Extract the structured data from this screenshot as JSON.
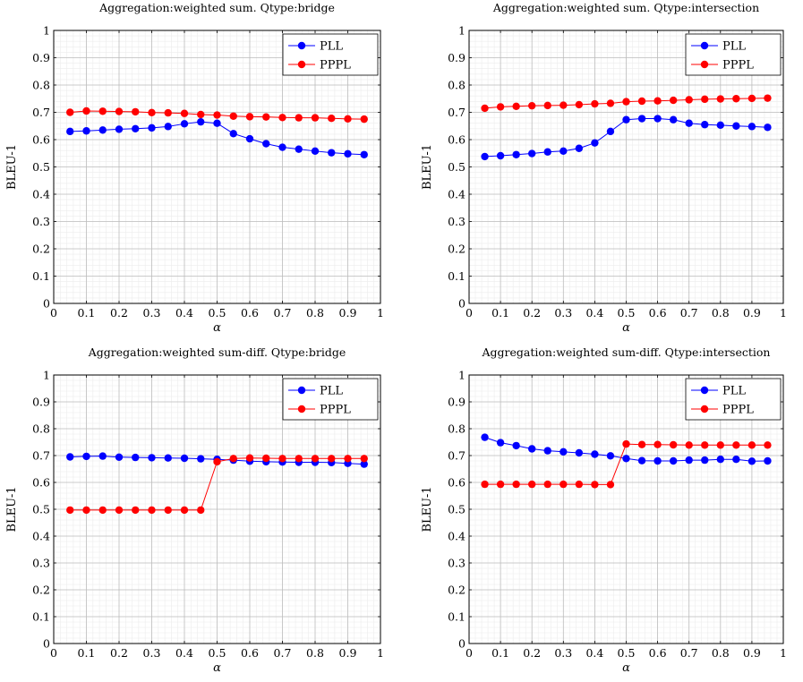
{
  "chart_data": [
    {
      "type": "line",
      "title": "Aggregation:weighted sum. Qtype:bridge",
      "xlabel": "α",
      "ylabel": "BLEU-1",
      "xlim": [
        0,
        1
      ],
      "ylim": [
        0,
        1
      ],
      "xticks": [
        "0",
        "0.1",
        "0.2",
        "0.3",
        "0.4",
        "0.5",
        "0.6",
        "0.7",
        "0.8",
        "0.9",
        "1"
      ],
      "yticks": [
        "0",
        "0.1",
        "0.2",
        "0.3",
        "0.4",
        "0.5",
        "0.6",
        "0.7",
        "0.8",
        "0.9",
        "1"
      ],
      "grid": true,
      "legend_position": "top-right",
      "x": [
        0.05,
        0.1,
        0.15,
        0.2,
        0.25,
        0.3,
        0.35,
        0.4,
        0.45,
        0.5,
        0.55,
        0.6,
        0.65,
        0.7,
        0.75,
        0.8,
        0.85,
        0.9,
        0.95
      ],
      "series": [
        {
          "name": "PLL",
          "color": "#0000ff",
          "values": [
            0.63,
            0.632,
            0.635,
            0.638,
            0.64,
            0.643,
            0.648,
            0.658,
            0.665,
            0.66,
            0.622,
            0.603,
            0.585,
            0.572,
            0.565,
            0.558,
            0.552,
            0.548,
            0.545
          ]
        },
        {
          "name": "PPPL",
          "color": "#ff0000",
          "values": [
            0.7,
            0.705,
            0.704,
            0.703,
            0.702,
            0.699,
            0.698,
            0.696,
            0.692,
            0.69,
            0.686,
            0.684,
            0.683,
            0.681,
            0.68,
            0.68,
            0.678,
            0.676,
            0.675
          ]
        }
      ]
    },
    {
      "type": "line",
      "title": "Aggregation:weighted sum. Qtype:intersection",
      "xlabel": "α",
      "ylabel": "BLEU-1",
      "xlim": [
        0,
        1
      ],
      "ylim": [
        0,
        1
      ],
      "xticks": [
        "0",
        "0.1",
        "0.2",
        "0.3",
        "0.4",
        "0.5",
        "0.6",
        "0.7",
        "0.8",
        "0.9",
        "1"
      ],
      "yticks": [
        "0",
        "0.1",
        "0.2",
        "0.3",
        "0.4",
        "0.5",
        "0.6",
        "0.7",
        "0.8",
        "0.9",
        "1"
      ],
      "grid": true,
      "legend_position": "top-right",
      "x": [
        0.05,
        0.1,
        0.15,
        0.2,
        0.25,
        0.3,
        0.35,
        0.4,
        0.45,
        0.5,
        0.55,
        0.6,
        0.65,
        0.7,
        0.75,
        0.8,
        0.85,
        0.9,
        0.95
      ],
      "series": [
        {
          "name": "PLL",
          "color": "#0000ff",
          "values": [
            0.538,
            0.541,
            0.545,
            0.549,
            0.555,
            0.558,
            0.568,
            0.588,
            0.63,
            0.673,
            0.677,
            0.677,
            0.673,
            0.66,
            0.655,
            0.653,
            0.65,
            0.648,
            0.645
          ]
        },
        {
          "name": "PPPL",
          "color": "#ff0000",
          "values": [
            0.715,
            0.72,
            0.722,
            0.724,
            0.725,
            0.726,
            0.728,
            0.731,
            0.733,
            0.739,
            0.741,
            0.742,
            0.744,
            0.746,
            0.748,
            0.749,
            0.75,
            0.751,
            0.752
          ]
        }
      ]
    },
    {
      "type": "line",
      "title": "Aggregation:weighted sum-diff. Qtype:bridge",
      "xlabel": "α",
      "ylabel": "BLEU-1",
      "xlim": [
        0,
        1
      ],
      "ylim": [
        0,
        1
      ],
      "xticks": [
        "0",
        "0.1",
        "0.2",
        "0.3",
        "0.4",
        "0.5",
        "0.6",
        "0.7",
        "0.8",
        "0.9",
        "1"
      ],
      "yticks": [
        "0",
        "0.1",
        "0.2",
        "0.3",
        "0.4",
        "0.5",
        "0.6",
        "0.7",
        "0.8",
        "0.9",
        "1"
      ],
      "grid": true,
      "legend_position": "top-right",
      "x": [
        0.05,
        0.1,
        0.15,
        0.2,
        0.25,
        0.3,
        0.35,
        0.4,
        0.45,
        0.5,
        0.55,
        0.6,
        0.65,
        0.7,
        0.75,
        0.8,
        0.85,
        0.9,
        0.95
      ],
      "series": [
        {
          "name": "PLL",
          "color": "#0000ff",
          "values": [
            0.695,
            0.697,
            0.698,
            0.694,
            0.693,
            0.692,
            0.691,
            0.69,
            0.688,
            0.686,
            0.683,
            0.679,
            0.677,
            0.676,
            0.675,
            0.675,
            0.674,
            0.671,
            0.668
          ]
        },
        {
          "name": "PPPL",
          "color": "#ff0000",
          "values": [
            0.497,
            0.497,
            0.497,
            0.497,
            0.497,
            0.497,
            0.497,
            0.497,
            0.497,
            0.677,
            0.689,
            0.691,
            0.69,
            0.689,
            0.689,
            0.689,
            0.689,
            0.689,
            0.689
          ]
        }
      ]
    },
    {
      "type": "line",
      "title": "Aggregation:weighted sum-diff. Qtype:intersection",
      "xlabel": "α",
      "ylabel": "BLEU-1",
      "xlim": [
        0,
        1
      ],
      "ylim": [
        0,
        1
      ],
      "xticks": [
        "0",
        "0.1",
        "0.2",
        "0.3",
        "0.4",
        "0.5",
        "0.6",
        "0.7",
        "0.8",
        "0.9",
        "1"
      ],
      "yticks": [
        "0",
        "0.1",
        "0.2",
        "0.3",
        "0.4",
        "0.5",
        "0.6",
        "0.7",
        "0.8",
        "0.9",
        "1"
      ],
      "grid": true,
      "legend_position": "top-right",
      "x": [
        0.05,
        0.1,
        0.15,
        0.2,
        0.25,
        0.3,
        0.35,
        0.4,
        0.45,
        0.5,
        0.55,
        0.6,
        0.65,
        0.7,
        0.75,
        0.8,
        0.85,
        0.9,
        0.95
      ],
      "series": [
        {
          "name": "PLL",
          "color": "#0000ff",
          "values": [
            0.768,
            0.748,
            0.737,
            0.725,
            0.718,
            0.714,
            0.71,
            0.705,
            0.699,
            0.689,
            0.681,
            0.68,
            0.68,
            0.683,
            0.683,
            0.686,
            0.686,
            0.679,
            0.68
          ]
        },
        {
          "name": "PPPL",
          "color": "#ff0000",
          "values": [
            0.593,
            0.593,
            0.593,
            0.593,
            0.593,
            0.593,
            0.593,
            0.592,
            0.592,
            0.743,
            0.741,
            0.741,
            0.74,
            0.739,
            0.739,
            0.739,
            0.739,
            0.739,
            0.739
          ]
        }
      ]
    }
  ]
}
